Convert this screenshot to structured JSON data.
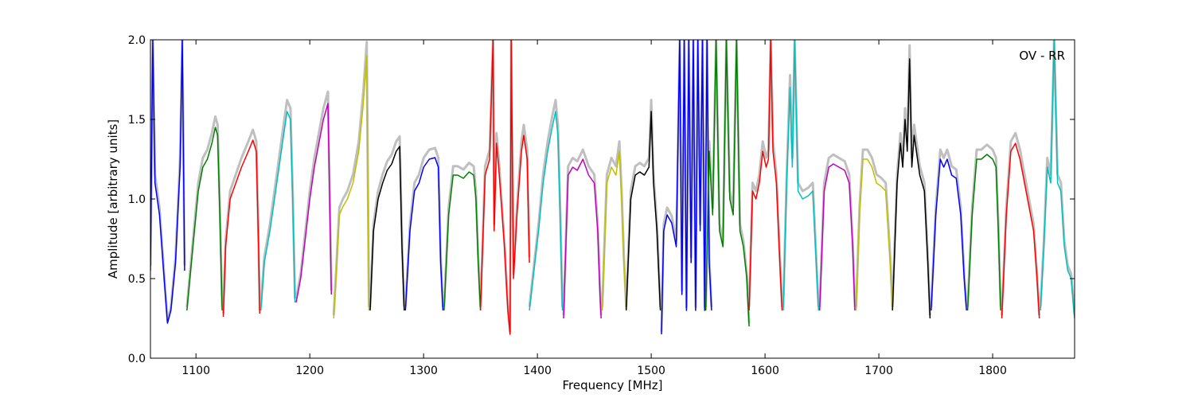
{
  "chart_data": {
    "type": "line",
    "title": "",
    "annotation": "OV - RR",
    "xlabel": "Frequency [MHz]",
    "ylabel": "Amplitude [arbitrary units]",
    "xlim": [
      1060,
      1872
    ],
    "ylim": [
      0,
      2.0
    ],
    "xticks": [
      1100,
      1200,
      1300,
      1400,
      1500,
      1600,
      1700,
      1800
    ],
    "xtick_labels": [
      "1100",
      "1200",
      "1300",
      "1400",
      "1500",
      "1600",
      "1700",
      "1800"
    ],
    "yticks": [
      0,
      0.5,
      1.0,
      1.5,
      2.0
    ],
    "ytick_labels": [
      "0.0",
      "0.5",
      "1.0",
      "1.5",
      "2.0"
    ],
    "grid": false,
    "background_series_color": "#bfbfbf",
    "series": [
      {
        "color": "#0000ff",
        "x": [
          1060,
          1062,
          1064,
          1068,
          1072,
          1075,
          1078,
          1082,
          1086,
          1088,
          1090
        ],
        "y": [
          0.55,
          2.0,
          1.1,
          0.9,
          0.5,
          0.22,
          0.3,
          0.6,
          1.2,
          2.0,
          0.55
        ]
      },
      {
        "color": "#008000",
        "x": [
          1092,
          1098,
          1102,
          1106,
          1110,
          1114,
          1117,
          1119,
          1121,
          1123
        ],
        "y": [
          0.3,
          0.75,
          1.05,
          1.2,
          1.25,
          1.35,
          1.45,
          1.4,
          0.9,
          0.3
        ]
      },
      {
        "color": "#ff0000",
        "x": [
          1124,
          1126,
          1130,
          1135,
          1140,
          1146,
          1150,
          1153,
          1155,
          1156
        ],
        "y": [
          0.26,
          0.7,
          1.0,
          1.1,
          1.2,
          1.3,
          1.37,
          1.3,
          0.7,
          0.28
        ]
      },
      {
        "color": "#00bfbf",
        "x": [
          1157,
          1160,
          1165,
          1170,
          1175,
          1180,
          1183,
          1185,
          1187
        ],
        "y": [
          0.3,
          0.6,
          0.8,
          1.05,
          1.3,
          1.55,
          1.5,
          1.0,
          0.35
        ]
      },
      {
        "color": "#bf00bf",
        "x": [
          1188,
          1192,
          1196,
          1200,
          1204,
          1208,
          1212,
          1216,
          1219
        ],
        "y": [
          0.35,
          0.5,
          0.75,
          1.0,
          1.2,
          1.35,
          1.5,
          1.6,
          0.4
        ]
      },
      {
        "color": "#bfbf00",
        "x": [
          1221,
          1223,
          1226,
          1229,
          1233,
          1238,
          1243,
          1247,
          1250,
          1252
        ],
        "y": [
          0.25,
          0.5,
          0.9,
          0.95,
          1.0,
          1.1,
          1.3,
          1.6,
          1.9,
          0.3
        ]
      },
      {
        "color": "#000000",
        "x": [
          1253,
          1256,
          1260,
          1264,
          1268,
          1272,
          1276,
          1279,
          1281,
          1283
        ],
        "y": [
          0.3,
          0.8,
          1.0,
          1.1,
          1.18,
          1.22,
          1.3,
          1.33,
          0.7,
          0.3
        ]
      },
      {
        "color": "#0000ff",
        "x": [
          1284,
          1288,
          1292,
          1296,
          1300,
          1305,
          1310,
          1313,
          1315,
          1317
        ],
        "y": [
          0.3,
          0.8,
          1.05,
          1.1,
          1.2,
          1.25,
          1.26,
          1.2,
          0.6,
          0.3
        ]
      },
      {
        "color": "#008000",
        "x": [
          1318,
          1322,
          1326,
          1330,
          1335,
          1340,
          1344,
          1346,
          1348,
          1350
        ],
        "y": [
          0.3,
          0.9,
          1.15,
          1.15,
          1.13,
          1.17,
          1.15,
          1.0,
          0.6,
          0.3
        ]
      },
      {
        "color": "#ff0000",
        "x": [
          1350,
          1354,
          1358,
          1361,
          1362,
          1364,
          1366,
          1368,
          1371,
          1374,
          1376,
          1377,
          1379,
          1382,
          1386,
          1388,
          1391,
          1393
        ],
        "y": [
          0.3,
          1.15,
          1.25,
          2.0,
          0.8,
          1.35,
          1.2,
          1.0,
          0.7,
          0.3,
          0.15,
          2.0,
          0.5,
          0.9,
          1.3,
          1.4,
          1.25,
          0.6
        ]
      },
      {
        "color": "#00bfbf",
        "x": [
          1393,
          1397,
          1401,
          1405,
          1409,
          1413,
          1416,
          1418,
          1420,
          1422
        ],
        "y": [
          0.3,
          0.55,
          0.8,
          1.1,
          1.3,
          1.45,
          1.55,
          1.4,
          0.9,
          0.3
        ]
      },
      {
        "color": "#bf00bf",
        "x": [
          1423,
          1427,
          1431,
          1435,
          1440,
          1445,
          1450,
          1453,
          1455,
          1456
        ],
        "y": [
          0.25,
          1.15,
          1.2,
          1.18,
          1.25,
          1.15,
          1.1,
          0.8,
          0.4,
          0.25
        ]
      },
      {
        "color": "#bfbf00",
        "x": [
          1457,
          1461,
          1465,
          1469,
          1472,
          1474,
          1476,
          1478
        ],
        "y": [
          0.3,
          1.1,
          1.2,
          1.15,
          1.3,
          1.0,
          0.6,
          0.3
        ]
      },
      {
        "color": "#000000",
        "x": [
          1478,
          1482,
          1486,
          1490,
          1494,
          1498,
          1500,
          1502,
          1505,
          1508
        ],
        "y": [
          0.3,
          1.0,
          1.15,
          1.17,
          1.15,
          1.2,
          1.55,
          1.1,
          0.8,
          0.3
        ]
      },
      {
        "color": "#0000ff",
        "x": [
          1509,
          1511,
          1514,
          1518,
          1522,
          1525,
          1527,
          1529,
          1531,
          1533,
          1535,
          1537,
          1539,
          1541,
          1543,
          1545,
          1547,
          1549,
          1551,
          1553
        ],
        "y": [
          0.15,
          0.8,
          0.9,
          0.85,
          0.7,
          2.0,
          0.4,
          2.0,
          0.3,
          2.0,
          0.6,
          2.0,
          0.3,
          2.0,
          0.8,
          2.0,
          0.3,
          2.0,
          0.6,
          0.3
        ]
      },
      {
        "color": "#008000",
        "x": [
          1548,
          1551,
          1554,
          1557,
          1560,
          1563,
          1566,
          1569,
          1572,
          1575,
          1578,
          1581,
          1584,
          1586
        ],
        "y": [
          0.3,
          1.3,
          0.9,
          2.0,
          0.8,
          0.7,
          2.0,
          1.0,
          0.9,
          2.0,
          0.8,
          0.7,
          0.5,
          0.2
        ]
      },
      {
        "color": "#ff0000",
        "x": [
          1586,
          1589,
          1592,
          1595,
          1598,
          1601,
          1603,
          1605,
          1607,
          1610,
          1613,
          1615
        ],
        "y": [
          0.3,
          1.05,
          1.0,
          1.1,
          1.3,
          1.2,
          1.25,
          2.0,
          1.3,
          1.1,
          0.6,
          0.3
        ]
      },
      {
        "color": "#00bfbf",
        "x": [
          1616,
          1619,
          1622,
          1624,
          1626,
          1629,
          1633,
          1638,
          1642,
          1645,
          1647
        ],
        "y": [
          0.3,
          1.1,
          1.7,
          1.2,
          2.0,
          1.05,
          1.0,
          1.02,
          1.05,
          0.6,
          0.3
        ]
      },
      {
        "color": "#bf00bf",
        "x": [
          1648,
          1652,
          1656,
          1660,
          1665,
          1670,
          1674,
          1677,
          1679
        ],
        "y": [
          0.3,
          1.05,
          1.2,
          1.22,
          1.2,
          1.18,
          1.1,
          0.7,
          0.3
        ]
      },
      {
        "color": "#bfbf00",
        "x": [
          1680,
          1683,
          1686,
          1690,
          1694,
          1698,
          1702,
          1706,
          1710,
          1712
        ],
        "y": [
          0.3,
          0.9,
          1.25,
          1.25,
          1.2,
          1.1,
          1.08,
          1.05,
          0.6,
          0.3
        ]
      },
      {
        "color": "#000000",
        "x": [
          1712,
          1716,
          1719,
          1721,
          1723,
          1725,
          1727,
          1729,
          1731,
          1736,
          1740,
          1743,
          1745
        ],
        "y": [
          0.3,
          1.1,
          1.35,
          1.2,
          1.5,
          1.3,
          1.88,
          1.2,
          1.4,
          1.15,
          1.05,
          0.6,
          0.25
        ]
      },
      {
        "color": "#0000ff",
        "x": [
          1746,
          1750,
          1754,
          1757,
          1760,
          1764,
          1768,
          1772,
          1775,
          1777
        ],
        "y": [
          0.3,
          0.9,
          1.25,
          1.2,
          1.25,
          1.15,
          1.13,
          0.9,
          0.5,
          0.3
        ]
      },
      {
        "color": "#008000",
        "x": [
          1778,
          1782,
          1786,
          1790,
          1795,
          1800,
          1803,
          1805,
          1807
        ],
        "y": [
          0.3,
          0.9,
          1.25,
          1.25,
          1.28,
          1.25,
          1.2,
          0.8,
          0.3
        ]
      },
      {
        "color": "#ff0000",
        "x": [
          1808,
          1812,
          1816,
          1820,
          1824,
          1828,
          1832,
          1836,
          1839,
          1841
        ],
        "y": [
          0.25,
          0.9,
          1.3,
          1.35,
          1.25,
          1.1,
          0.95,
          0.8,
          0.5,
          0.25
        ]
      },
      {
        "color": "#00bfbf",
        "x": [
          1842,
          1845,
          1848,
          1851,
          1854,
          1857,
          1860,
          1863,
          1866,
          1869,
          1872
        ],
        "y": [
          0.3,
          0.7,
          1.2,
          1.1,
          2.0,
          1.1,
          1.05,
          0.7,
          0.55,
          0.5,
          0.25
        ]
      }
    ]
  }
}
